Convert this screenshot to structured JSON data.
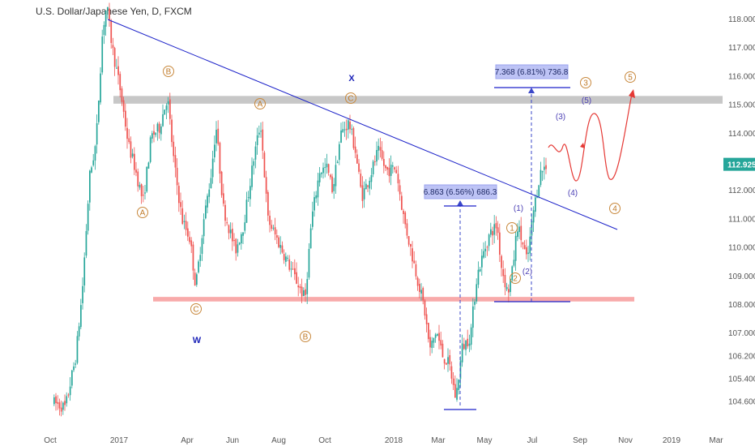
{
  "chart_data": {
    "type": "candlestick",
    "title": "U.S. Dollar/Japanese Yen, D, FXCM",
    "ylim": [
      104.2,
      118.6
    ],
    "y_ticks": [
      "118.000",
      "117.000",
      "116.000",
      "115.000",
      "114.000",
      "113.000",
      "112.000",
      "111.000",
      "110.000",
      "109.000",
      "108.000",
      "107.000",
      "106.200",
      "105.400",
      "104.600"
    ],
    "x_ticks": [
      "Oct",
      "2017",
      "Apr",
      "Jun",
      "Aug",
      "Oct",
      "2018",
      "Mar",
      "May",
      "Jul",
      "Sep",
      "Nov",
      "2019",
      "Mar"
    ],
    "current_price": "112.925",
    "colors": {
      "up": "#26a69a",
      "down": "#ef5350",
      "trendline": "#1c22c9",
      "resistance": "#bdbdbd",
      "support": "#f7a1a1",
      "projection": "#e53935"
    },
    "zones": {
      "resistance": [
        115.05,
        115.32
      ],
      "support": [
        108.12,
        108.28
      ]
    },
    "wave_labels_circled": [
      "A",
      "B",
      "C",
      "A",
      "C",
      "B",
      "1",
      "2",
      "3",
      "4",
      "5"
    ],
    "wave_labels_paren": [
      "(1)",
      "(2)",
      "(3)",
      "(4)",
      "(5)"
    ],
    "wave_labels_xw": [
      "X",
      "W"
    ],
    "measurements": [
      {
        "label": "6.863 (6.56%) 686.3"
      },
      {
        "label": "7.368 (6.81%) 736.8"
      }
    ]
  }
}
